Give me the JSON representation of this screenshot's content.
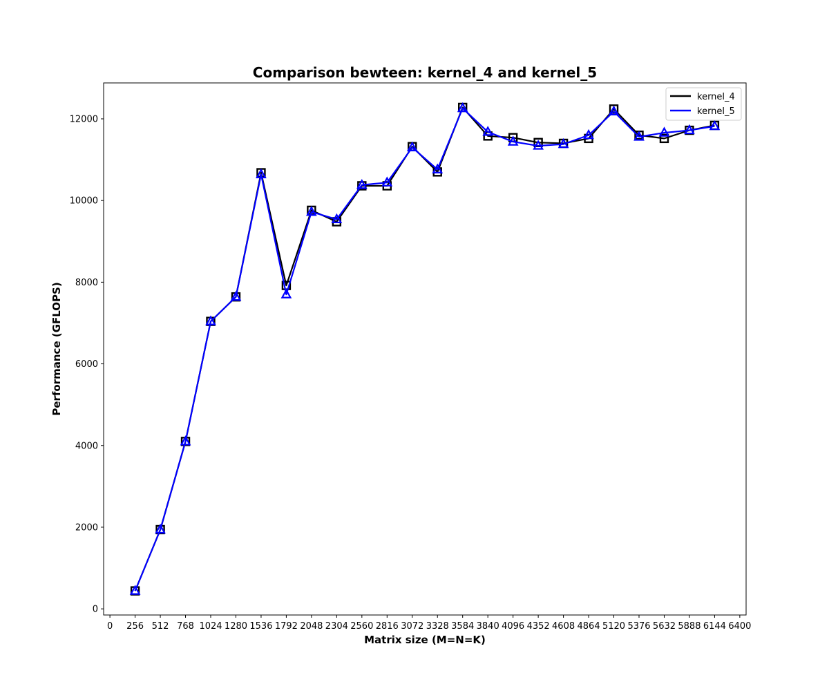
{
  "chart_data": {
    "type": "line",
    "title": "Comparison bewteen: kernel_4 and kernel_5",
    "xlabel": "Matrix size (M=N=K)",
    "ylabel": "Performance (GFLOPS)",
    "xlim": [
      -64,
      6464
    ],
    "ylim": [
      -150,
      12880
    ],
    "x_ticks": [
      0,
      256,
      512,
      768,
      1024,
      1280,
      1536,
      1792,
      2048,
      2304,
      2560,
      2816,
      3072,
      3328,
      3584,
      3840,
      4096,
      4352,
      4608,
      4864,
      5120,
      5376,
      5632,
      5888,
      6144,
      6400
    ],
    "y_ticks": [
      0,
      2000,
      4000,
      6000,
      8000,
      10000,
      12000
    ],
    "grid": false,
    "legend_position": "top-right",
    "x": [
      256,
      512,
      768,
      1024,
      1280,
      1536,
      1792,
      2048,
      2304,
      2560,
      2816,
      3072,
      3328,
      3584,
      3840,
      4096,
      4352,
      4608,
      4864,
      5120,
      5376,
      5632,
      5888,
      6144
    ],
    "series": [
      {
        "name": "kernel_4",
        "color": "#000000",
        "marker": "square",
        "values": [
          440,
          1940,
          4100,
          7040,
          7640,
          10680,
          7920,
          9760,
          9480,
          10360,
          10360,
          11320,
          10700,
          12280,
          11580,
          11540,
          11420,
          11400,
          11520,
          12240,
          11600,
          11520,
          11720,
          11840
        ]
      },
      {
        "name": "kernel_5",
        "color": "#0000ff",
        "marker": "triangle",
        "values": [
          440,
          1940,
          4100,
          7040,
          7640,
          10640,
          7700,
          9720,
          9540,
          10380,
          10440,
          11300,
          10760,
          12260,
          11680,
          11440,
          11340,
          11380,
          11600,
          12180,
          11560,
          11660,
          11720,
          11820
        ]
      }
    ]
  }
}
